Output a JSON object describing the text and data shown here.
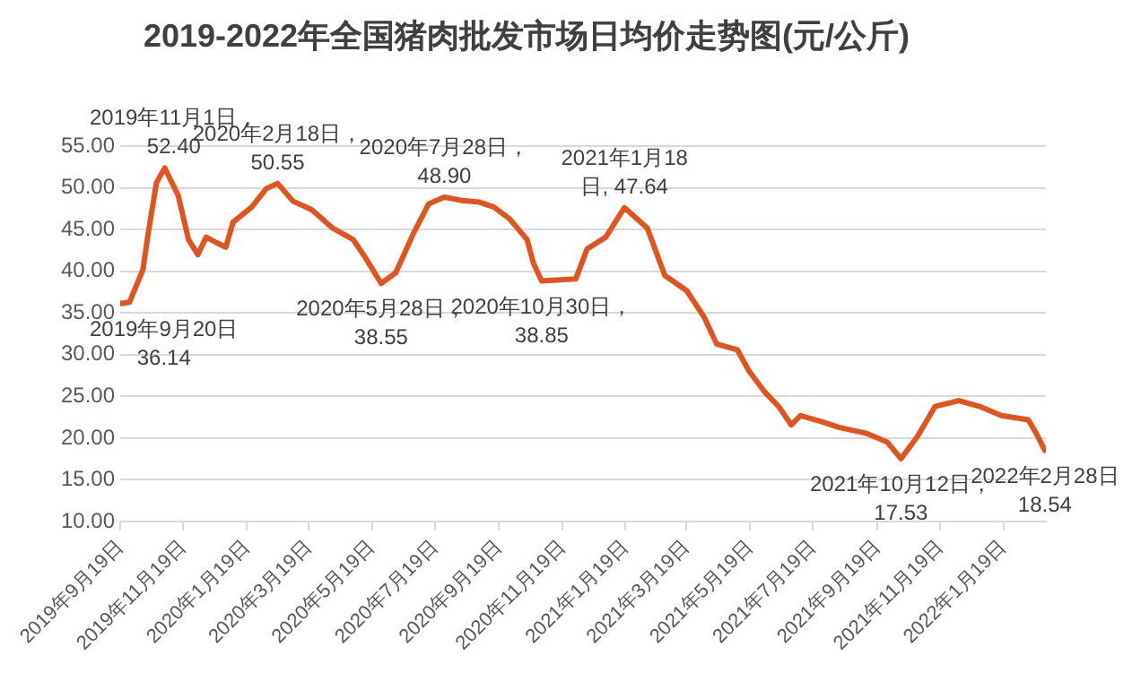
{
  "chart_data": {
    "type": "line",
    "title": "2019-2022年全国猪肉批发市场日均价走势图(元/公斤)",
    "x": [
      "2019-09-19",
      "2019-09-20",
      "2019-09-28",
      "2019-10-11",
      "2019-10-16",
      "2019-10-24",
      "2019-11-01",
      "2019-11-14",
      "2019-11-24",
      "2019-12-03",
      "2019-12-11",
      "2019-12-20",
      "2019-12-30",
      "2020-01-06",
      "2020-01-24",
      "2020-02-07",
      "2020-02-18",
      "2020-03-04",
      "2020-03-22",
      "2020-04-11",
      "2020-05-01",
      "2020-05-13",
      "2020-05-28",
      "2020-06-11",
      "2020-06-28",
      "2020-07-13",
      "2020-07-28",
      "2020-08-14",
      "2020-08-31",
      "2020-09-14",
      "2020-09-29",
      "2020-10-16",
      "2020-10-22",
      "2020-10-30",
      "2020-12-02",
      "2020-12-13",
      "2020-12-31",
      "2021-01-18",
      "2021-02-09",
      "2021-02-26",
      "2021-03-19",
      "2021-04-05",
      "2021-04-17",
      "2021-05-07",
      "2021-05-18",
      "2021-06-02",
      "2021-06-16",
      "2021-06-28",
      "2021-07-07",
      "2021-07-27",
      "2021-08-13",
      "2021-09-08",
      "2021-09-29",
      "2021-10-12",
      "2021-10-28",
      "2021-11-14",
      "2021-12-07",
      "2021-12-27",
      "2022-01-17",
      "2022-02-12",
      "2022-02-20",
      "2022-02-28"
    ],
    "series": [
      {
        "color": "#e4531d",
        "values": [
          36.2,
          36.14,
          36.3,
          40.2,
          44.5,
          50.6,
          52.4,
          49.1,
          43.8,
          42.0,
          44.1,
          43.5,
          42.9,
          45.9,
          47.7,
          49.9,
          50.55,
          48.4,
          47.4,
          45.2,
          43.8,
          41.6,
          38.55,
          39.8,
          44.5,
          48.1,
          48.9,
          48.5,
          48.3,
          47.7,
          46.3,
          43.8,
          41.0,
          38.85,
          39.1,
          42.7,
          44.1,
          47.64,
          45.2,
          39.5,
          37.7,
          34.5,
          31.3,
          30.6,
          28.1,
          25.6,
          23.8,
          21.6,
          22.7,
          22.0,
          21.3,
          20.6,
          19.5,
          17.53,
          20.2,
          23.8,
          24.5,
          23.8,
          22.7,
          22.2,
          20.5,
          18.54
        ]
      }
    ],
    "xlim": [
      "2019-09-19",
      "2022-03-01"
    ],
    "xticks": [
      {
        "value": "2019-09-19",
        "label": "2019年9月19日"
      },
      {
        "value": "2019-11-19",
        "label": "2019年11月19日"
      },
      {
        "value": "2020-01-19",
        "label": "2020年1月19日"
      },
      {
        "value": "2020-03-19",
        "label": "2020年3月19日"
      },
      {
        "value": "2020-05-19",
        "label": "2020年5月19日"
      },
      {
        "value": "2020-07-19",
        "label": "2020年7月19日"
      },
      {
        "value": "2020-09-19",
        "label": "2020年9月19日"
      },
      {
        "value": "2020-11-19",
        "label": "2020年11月19日"
      },
      {
        "value": "2021-01-19",
        "label": "2021年1月19日"
      },
      {
        "value": "2021-03-19",
        "label": "2021年3月19日"
      },
      {
        "value": "2021-05-19",
        "label": "2021年5月19日"
      },
      {
        "value": "2021-07-19",
        "label": "2021年7月19日"
      },
      {
        "value": "2021-09-19",
        "label": "2021年9月19日"
      },
      {
        "value": "2021-11-19",
        "label": "2021年11月19日"
      },
      {
        "value": "2022-01-19",
        "label": "2022年1月19日"
      }
    ],
    "ylim": [
      10,
      55
    ],
    "yticks": [
      {
        "value": 10,
        "label": "10.00"
      },
      {
        "value": 15,
        "label": "15.00"
      },
      {
        "value": 20,
        "label": "20.00"
      },
      {
        "value": 25,
        "label": "25.00"
      },
      {
        "value": 30,
        "label": "30.00"
      },
      {
        "value": 35,
        "label": "35.00"
      },
      {
        "value": 40,
        "label": "40.00"
      },
      {
        "value": 45,
        "label": "45.00"
      },
      {
        "value": 50,
        "label": "50.00"
      },
      {
        "value": 55,
        "label": "55.00"
      }
    ],
    "grid": "y",
    "marker": "none",
    "line_style": "solid",
    "annotations": [
      {
        "text": "2019年9月20日\n36.14",
        "x": "2019-09-20",
        "y": 36.14
      },
      {
        "text": "2019年11月1日，\n52.40",
        "x": "2019-11-01",
        "y": 52.4
      },
      {
        "text": "2020年2月18日，\n50.55",
        "x": "2020-02-18",
        "y": 50.55
      },
      {
        "text": "2020年5月28日，\n38.55",
        "x": "2020-05-28",
        "y": 38.55
      },
      {
        "text": "2020年7月28日，\n48.90",
        "x": "2020-07-28",
        "y": 48.9
      },
      {
        "text": "2020年10月30日，\n38.85",
        "x": "2020-10-30",
        "y": 38.85
      },
      {
        "text": "2021年1月18\n日, 47.64",
        "x": "2021-01-18",
        "y": 47.64
      },
      {
        "text": "2021年10月12日，\n17.53",
        "x": "2021-10-12",
        "y": 17.53
      },
      {
        "text": "2022年2月28日\n18.54",
        "x": "2022-02-28",
        "y": 18.54
      }
    ]
  }
}
